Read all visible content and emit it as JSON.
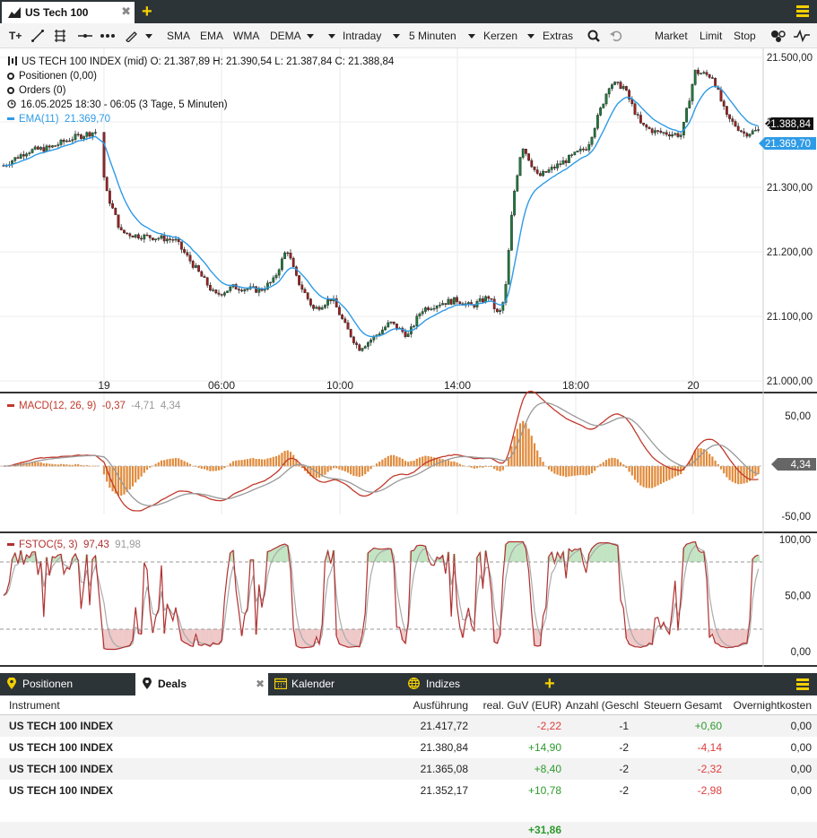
{
  "window": {
    "tab_title": "US Tech 100",
    "add_tab_icon": "plus-icon",
    "menu_icon": "hamburger-icon"
  },
  "toolbar": {
    "items": [
      "SMA",
      "EMA",
      "WMA",
      "DEMA",
      "Intraday",
      "5 Minuten",
      "Kerzen",
      "Extras",
      "Market",
      "Limit",
      "Stop"
    ],
    "text_tool": "T+",
    "icons": [
      "text-tool-icon",
      "line-tool-icon",
      "fibonacci-icon",
      "horizontal-line-icon",
      "dotted-line-icon",
      "pen-icon",
      "zoom-icon",
      "undo-icon",
      "indicator-icon",
      "pulse-icon"
    ]
  },
  "info": {
    "symbol_line": "US TECH 100 INDEX (mid)  O: 21.387,89  H: 21.390,54  L: 21.387,84  C: 21.388,84",
    "positions": "Positionen (0,00)",
    "orders": "Orders (0)",
    "range": "16.05.2025 18:30 - 06:05   (3 Tage, 5 Minuten)",
    "ema_label": "EMA(11)",
    "ema_value": "21.369,70"
  },
  "colors": {
    "candle_up": "#1e7a3c",
    "candle_down": "#9e1f1f",
    "ema": "#2e9be6",
    "macd": "#c0392b",
    "signal": "#999999",
    "hist": "#e08a3a",
    "fast": "#b03030",
    "slow": "#aaaaaa"
  },
  "price_axis": {
    "ticks": [
      "21.500,00",
      "21.400,00",
      "21.300,00",
      "21.200,00",
      "21.100,00",
      "21.000,00"
    ],
    "last_price": "21.388,84",
    "ema_price": "21.369,70"
  },
  "time_axis": [
    "19",
    "06:00",
    "10:00",
    "14:00",
    "18:00",
    "20"
  ],
  "macd": {
    "label": "MACD(12, 26, 9)",
    "value1": "-0,37",
    "value2": "-4,71",
    "value3": "4,34",
    "ticks": [
      "50,00",
      "-50,00"
    ],
    "marker": "4,34"
  },
  "stoch": {
    "label": "FSTOC(5, 3)",
    "value1": "97,43",
    "value2": "91,98",
    "ticks": [
      "100,00",
      "50,00",
      "0,00"
    ]
  },
  "bottom_tabs": [
    {
      "label": "Positionen",
      "icon": "pin-icon"
    },
    {
      "label": "Deals",
      "icon": "pin-icon"
    },
    {
      "label": "Kalender",
      "icon": "calendar-icon"
    },
    {
      "label": "Indizes",
      "icon": "globe-icon"
    }
  ],
  "table": {
    "headers": [
      "Instrument",
      "Ausführung",
      "real. GuV (EUR)",
      "Anzahl (Geschl",
      "Steuern Gesamt",
      "Overnightkosten"
    ],
    "rows": [
      {
        "instrument": "US TECH 100 INDEX",
        "execution": "21.417,72",
        "pnl": "-2,22",
        "count": "-1",
        "taxes": "+0,60",
        "overnight": "0,00"
      },
      {
        "instrument": "US TECH 100 INDEX",
        "execution": "21.380,84",
        "pnl": "+14,90",
        "count": "-2",
        "taxes": "-4,14",
        "overnight": "0,00"
      },
      {
        "instrument": "US TECH 100 INDEX",
        "execution": "21.365,08",
        "pnl": "+8,40",
        "count": "-2",
        "taxes": "-2,32",
        "overnight": "0,00"
      },
      {
        "instrument": "US TECH 100 INDEX",
        "execution": "21.352,17",
        "pnl": "+10,78",
        "count": "-2",
        "taxes": "-2,98",
        "overnight": "0,00"
      }
    ],
    "total": "+31,86"
  }
}
